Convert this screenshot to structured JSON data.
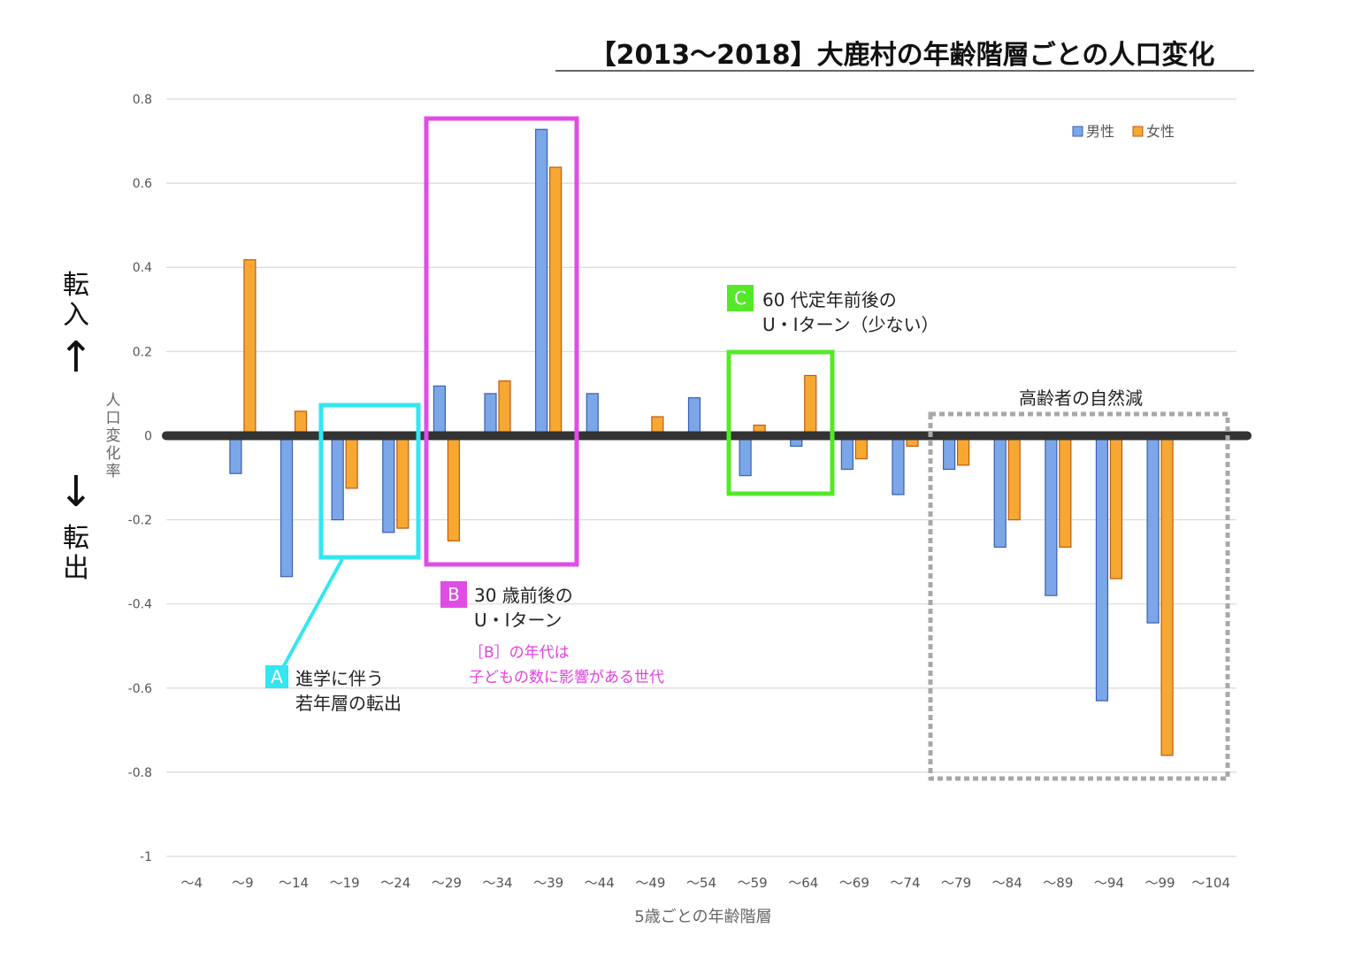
{
  "chart_data": {
    "type": "bar",
    "title": "【2013〜2018】大鹿村の年齢階層ごとの人口変化",
    "xlabel": "5歳ごとの年齢階層",
    "ylabel": "人口変化率",
    "ylim": [
      -1,
      0.8
    ],
    "yticks": [
      0.8,
      0.6,
      0.4,
      0.2,
      0,
      -0.2,
      -0.4,
      -0.6,
      -0.8,
      -1
    ],
    "ytick_labels": [
      "0.8",
      "0.6",
      "0.4",
      "0.2",
      "0",
      "-0.2",
      "-0.4",
      "-0.6",
      "-0.8",
      "-1"
    ],
    "grid": true,
    "legend_position": "top-right",
    "categories": [
      "〜4",
      "〜9",
      "〜14",
      "〜19",
      "〜24",
      "〜29",
      "〜34",
      "〜39",
      "〜44",
      "〜49",
      "〜54",
      "〜59",
      "〜64",
      "〜69",
      "〜74",
      "〜79",
      "〜84",
      "〜89",
      "〜94",
      "〜99",
      "〜104"
    ],
    "series": [
      {
        "name": "男性",
        "color": "#7ba7e8",
        "edge": "#3a5fb0",
        "values": [
          0,
          -0.09,
          -0.335,
          -0.2,
          -0.23,
          0.118,
          0.1,
          0.728,
          0.1,
          0,
          0.09,
          -0.095,
          -0.025,
          -0.08,
          -0.14,
          -0.08,
          -0.265,
          -0.38,
          -0.63,
          -0.445,
          0
        ]
      },
      {
        "name": "女性",
        "color": "#f6a833",
        "edge": "#c05a10",
        "values": [
          0,
          0.418,
          0.058,
          -0.125,
          -0.22,
          -0.25,
          0.13,
          0.638,
          0,
          0.045,
          0,
          0.025,
          0.143,
          -0.055,
          -0.025,
          -0.07,
          -0.2,
          -0.265,
          -0.34,
          -0.76,
          0
        ]
      }
    ]
  },
  "side_labels": {
    "inflow": "転入",
    "outflow": "転出",
    "up_arrow": "↑",
    "down_arrow": "↓"
  },
  "annotations": {
    "A": {
      "letter": "A",
      "color": "#33e6f0",
      "line1": "進学に伴う",
      "line2": "若年層の転出"
    },
    "B": {
      "letter": "B",
      "color": "#e04ce6",
      "line1": "30 歳前後の",
      "line2": "U・Iターン",
      "note1": "［B］の年代は",
      "note2": "子どもの数に影響がある世代"
    },
    "C": {
      "letter": "C",
      "color": "#55e82a",
      "line1": "60 代定年前後の",
      "line2": "U・Iターン（少ない）"
    },
    "elderly": {
      "label": "高齢者の自然減",
      "color": "#a8a8a8"
    }
  }
}
